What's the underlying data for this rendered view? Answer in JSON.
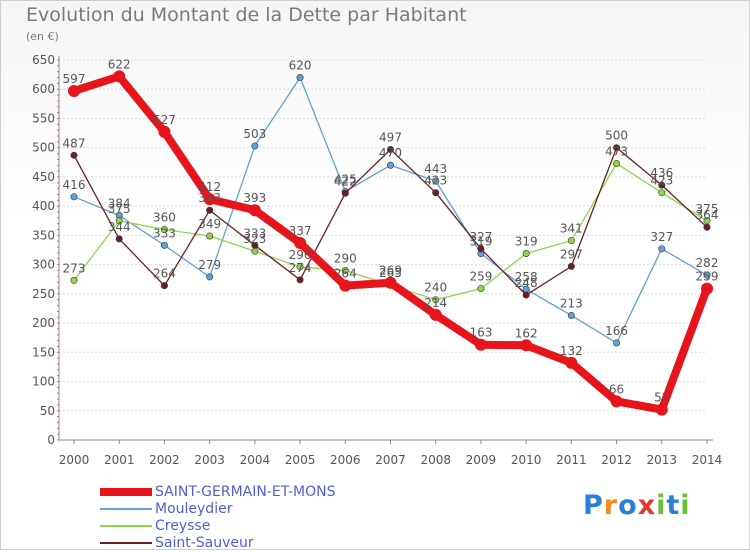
{
  "chart": {
    "title": "Evolution du Montant de la Dette par Habitant",
    "unit": "(en €)"
  },
  "brand": {
    "letters": [
      "P",
      "r",
      "o",
      "x",
      "i",
      "t",
      "i"
    ],
    "colors": [
      "#2b7fd9",
      "#f28c1f",
      "#2b7fd9",
      "#e23b2e",
      "#6bbf3a",
      "#2b7fd9",
      "#6bbf3a"
    ]
  },
  "chart_data": {
    "type": "line",
    "x": [
      "2000",
      "2001",
      "2002",
      "2003",
      "2004",
      "2005",
      "2006",
      "2007",
      "2008",
      "2009",
      "2010",
      "2011",
      "2012",
      "2013",
      "2014"
    ],
    "ylim": [
      0,
      650
    ],
    "yticks": [
      0,
      50,
      100,
      150,
      200,
      250,
      300,
      350,
      400,
      450,
      500,
      550,
      600,
      650
    ],
    "grid": true,
    "legend_position": "bottom-left",
    "series": [
      {
        "name": "SAINT-GERMAIN-ET-MONS",
        "color": "#e8141b",
        "width": 8,
        "values": [
          597,
          622,
          527,
          412,
          393,
          337,
          264,
          269,
          214,
          163,
          162,
          132,
          66,
          52,
          259
        ],
        "labels": [
          "597",
          "622",
          "527",
          "412",
          "393",
          "337",
          "264",
          "269",
          "214",
          "163",
          "162",
          "132",
          "66",
          "52",
          "259"
        ]
      },
      {
        "name": "Mouleydier",
        "color": "#5fa0d6",
        "width": 1.3,
        "values": [
          416,
          384,
          333,
          279,
          503,
          620,
          425,
          470,
          443,
          319,
          258,
          213,
          166,
          327,
          282
        ],
        "labels": [
          "416",
          "384",
          "333",
          "279",
          "503",
          "620",
          "425",
          "470",
          "443",
          "319",
          "258",
          "213",
          "166",
          "327",
          "282"
        ]
      },
      {
        "name": "Creysse",
        "color": "#8fd54a",
        "width": 1.3,
        "values": [
          273,
          375,
          360,
          349,
          323,
          296,
          290,
          265,
          240,
          259,
          319,
          341,
          473,
          423,
          375
        ],
        "labels": [
          "273",
          "375",
          "360",
          "349",
          "323",
          "296",
          "290",
          "265",
          "240",
          "259",
          "319",
          "341",
          "473",
          "423",
          "375"
        ]
      },
      {
        "name": "Saint-Sauveur",
        "color": "#6b1f24",
        "width": 1.3,
        "values": [
          487,
          344,
          264,
          393,
          333,
          274,
          422,
          497,
          423,
          327,
          248,
          297,
          500,
          436,
          364
        ],
        "labels": [
          "487",
          "344",
          "264",
          "393",
          "333",
          "274",
          "422",
          "497",
          "423",
          "327",
          "248",
          "297",
          "500",
          "436",
          "364"
        ]
      }
    ]
  }
}
